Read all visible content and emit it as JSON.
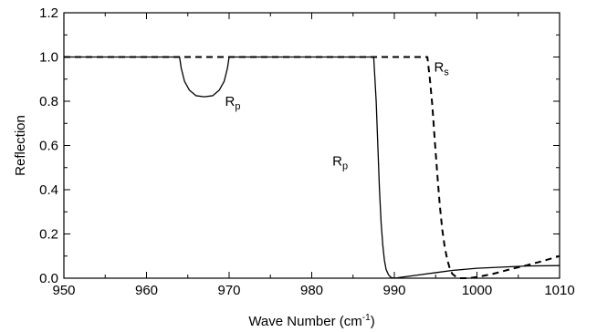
{
  "chart_data": {
    "type": "line",
    "title": "",
    "xlabel": "Wave Number (cm",
    "xlabel_sup": "-1",
    "xlabel_end": ")",
    "ylabel": "Reflection",
    "xlim": [
      950,
      1010
    ],
    "ylim": [
      0.0,
      1.2
    ],
    "xticks": [
      950,
      960,
      970,
      980,
      990,
      1000,
      1010
    ],
    "yticks": [
      0.0,
      0.2,
      0.4,
      0.6,
      0.8,
      1.0,
      1.2
    ],
    "xtick_labels": [
      "950",
      "960",
      "970",
      "980",
      "990",
      "1000",
      "1010"
    ],
    "ytick_labels": [
      "0.0",
      "0.2",
      "0.4",
      "0.6",
      "0.8",
      "1.0",
      "1.2"
    ],
    "grid": false,
    "series": [
      {
        "name": "Rp",
        "style": "solid",
        "x": [
          950,
          964,
          964.2,
          964.6,
          965.2,
          966,
          967,
          968,
          968.8,
          969.4,
          969.8,
          970,
          987.5,
          987.8,
          988.0,
          988.2,
          988.4,
          988.6,
          988.8,
          989.0,
          989.3,
          989.6,
          990.0,
          991,
          993,
          995,
          997,
          1000,
          1003,
          1006,
          1010
        ],
        "y": [
          1.0,
          1.0,
          0.95,
          0.89,
          0.85,
          0.825,
          0.82,
          0.825,
          0.85,
          0.89,
          0.95,
          1.0,
          1.0,
          0.8,
          0.6,
          0.4,
          0.25,
          0.15,
          0.08,
          0.04,
          0.015,
          0.003,
          0.0,
          0.005,
          0.015,
          0.025,
          0.035,
          0.045,
          0.05,
          0.055,
          0.057
        ]
      },
      {
        "name": "Rs",
        "style": "dashed",
        "x": [
          950,
          994,
          994.3,
          994.6,
          994.9,
          995.2,
          995.5,
          995.8,
          996.1,
          996.4,
          996.7,
          997.0,
          997.5,
          998,
          998.5,
          999.0,
          1000,
          1002,
          1004,
          1006,
          1008,
          1010
        ],
        "y": [
          1.0,
          1.0,
          0.9,
          0.78,
          0.62,
          0.47,
          0.33,
          0.22,
          0.14,
          0.085,
          0.045,
          0.02,
          0.005,
          0.0,
          0.0,
          0.0,
          0.005,
          0.02,
          0.04,
          0.058,
          0.078,
          0.1
        ]
      }
    ],
    "annotations": [
      {
        "label": "R",
        "sub": "p",
        "x": 969.5,
        "y": 0.78
      },
      {
        "label": "R",
        "sub": "s",
        "x": 994.8,
        "y": 0.935
      },
      {
        "label": "R",
        "sub": "p",
        "x": 982.5,
        "y": 0.51
      }
    ]
  }
}
